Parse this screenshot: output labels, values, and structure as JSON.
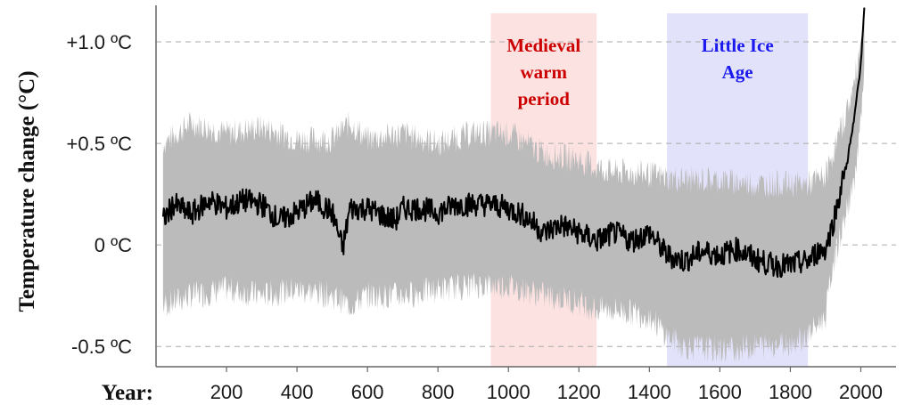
{
  "chart_data": {
    "type": "line",
    "ylabel": "Temperature change (°C)",
    "xlabel": "Year:",
    "xlim": [
      0,
      2100
    ],
    "ylim": [
      -0.6,
      1.18
    ],
    "x_ticks": [
      {
        "value": 200,
        "label": "200"
      },
      {
        "value": 400,
        "label": "400"
      },
      {
        "value": 600,
        "label": "600"
      },
      {
        "value": 800,
        "label": "800"
      },
      {
        "value": 1000,
        "label": "1000"
      },
      {
        "value": 1200,
        "label": "1200"
      },
      {
        "value": 1400,
        "label": "1400"
      },
      {
        "value": 1600,
        "label": "1600"
      },
      {
        "value": 1800,
        "label": "1800"
      },
      {
        "value": 2000,
        "label": "2000"
      }
    ],
    "y_ticks": [
      {
        "value": 1.0,
        "label": "+1.0 ºC"
      },
      {
        "value": 0.5,
        "label": "+0.5 ºC"
      },
      {
        "value": 0.0,
        "label": "0 ºC"
      },
      {
        "value": -0.5,
        "label": "-0.5 ºC"
      }
    ],
    "grid": "horizontal dashed at y ticks",
    "periods": [
      {
        "lines": [
          "Medieval",
          "warm",
          "period"
        ],
        "start": 950,
        "end": 1250,
        "color": "#cc0000",
        "fill": "#fde2e2"
      },
      {
        "lines": [
          "Little Ice",
          "Age"
        ],
        "start": 1450,
        "end": 1850,
        "color": "#1a1aee",
        "fill": "#e2e2fb"
      }
    ],
    "series": [
      {
        "kind": "mean",
        "color": "#000000",
        "x": [
          20,
          50,
          100,
          150,
          200,
          250,
          300,
          350,
          400,
          450,
          500,
          530,
          550,
          600,
          650,
          680,
          700,
          750,
          800,
          850,
          900,
          950,
          1000,
          1050,
          1100,
          1150,
          1200,
          1250,
          1300,
          1350,
          1400,
          1450,
          1500,
          1550,
          1600,
          1650,
          1700,
          1750,
          1800,
          1850,
          1880,
          1900,
          1920,
          1940,
          1960,
          1980,
          2000,
          2010
        ],
        "y": [
          0.12,
          0.2,
          0.15,
          0.22,
          0.18,
          0.22,
          0.2,
          0.12,
          0.16,
          0.22,
          0.16,
          -0.02,
          0.18,
          0.18,
          0.14,
          0.12,
          0.18,
          0.18,
          0.16,
          0.2,
          0.2,
          0.2,
          0.18,
          0.14,
          0.06,
          0.1,
          0.06,
          0.02,
          0.06,
          0.02,
          0.06,
          -0.05,
          -0.08,
          -0.03,
          -0.05,
          -0.02,
          -0.07,
          -0.1,
          -0.1,
          -0.08,
          -0.03,
          -0.02,
          0.1,
          0.25,
          0.4,
          0.6,
          0.9,
          1.15
        ]
      },
      {
        "kind": "uncertainty",
        "color": "#bbbbbb",
        "x": [
          20,
          100,
          200,
          300,
          400,
          500,
          550,
          600,
          700,
          800,
          900,
          1000,
          1100,
          1200,
          1250,
          1300,
          1400,
          1450,
          1500,
          1600,
          1700,
          1800,
          1850,
          1900,
          1920,
          1950,
          1980,
          2000,
          2010
        ],
        "upper": [
          0.5,
          0.6,
          0.55,
          0.58,
          0.52,
          0.52,
          0.6,
          0.52,
          0.55,
          0.5,
          0.55,
          0.55,
          0.45,
          0.42,
          0.38,
          0.36,
          0.35,
          0.33,
          0.32,
          0.32,
          0.3,
          0.3,
          0.3,
          0.34,
          0.45,
          0.6,
          0.78,
          1.0,
          1.15
        ],
        "lower": [
          -0.3,
          -0.25,
          -0.22,
          -0.25,
          -0.22,
          -0.25,
          -0.3,
          -0.25,
          -0.25,
          -0.22,
          -0.2,
          -0.2,
          -0.25,
          -0.28,
          -0.32,
          -0.32,
          -0.35,
          -0.45,
          -0.5,
          -0.52,
          -0.5,
          -0.48,
          -0.45,
          -0.35,
          -0.1,
          0.1,
          0.3,
          0.6,
          0.85
        ]
      }
    ]
  }
}
